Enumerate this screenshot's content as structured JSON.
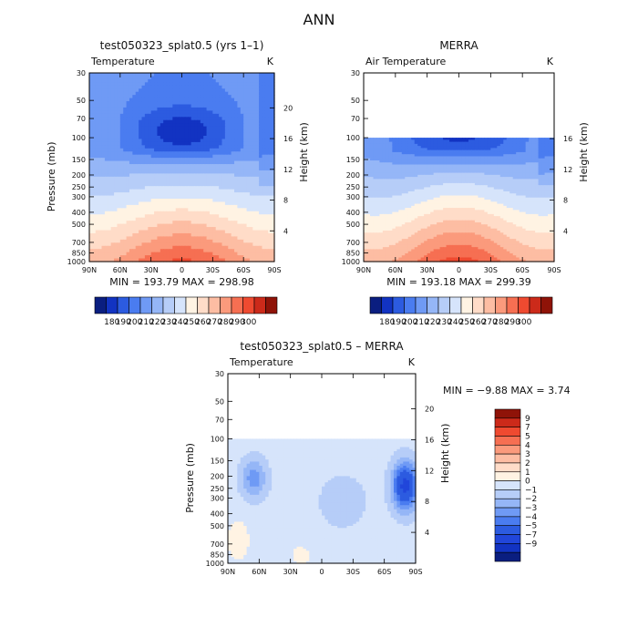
{
  "figure": {
    "title": "ANN"
  },
  "colors": {
    "abs_levels": [
      "#0a1e80",
      "#1233c2",
      "#2c5be0",
      "#4a7cf0",
      "#6f9af5",
      "#95b6f7",
      "#b6cdf8",
      "#d6e4fb",
      "#fff3e3",
      "#ffdcc8",
      "#fdbda3",
      "#fb9a7c",
      "#f66f52",
      "#ef4a30",
      "#cc2a1a",
      "#8f1308"
    ],
    "diff_levels": [
      "#0a1e80",
      "#1233c2",
      "#2146da",
      "#2c5be0",
      "#4a7cf0",
      "#6f9af5",
      "#95b6f7",
      "#b6cdf8",
      "#d6e4fb",
      "#fff3e3",
      "#ffdcc8",
      "#fdbda3",
      "#fb9a7c",
      "#f66f52",
      "#ef4a30",
      "#cc2a1a",
      "#8f1308"
    ]
  },
  "chart_data": [
    {
      "type": "contour",
      "id": "model",
      "title": "test050323_splat0.5 (yrs 1–1)",
      "variable": "Temperature",
      "units": "K",
      "ylabel": "Pressure (mb)",
      "ylabel_right": "Height (km)",
      "xticks": [
        "90N",
        "60N",
        "30N",
        "0",
        "30S",
        "60S",
        "90S"
      ],
      "pressure_levels": [
        "30",
        "50",
        "70",
        "100",
        "150",
        "200",
        "250",
        "300",
        "400",
        "500",
        "700",
        "850",
        "1000"
      ],
      "height_ticks": [
        "20",
        "16",
        "12",
        "8",
        "4"
      ],
      "data_top_mb": 30,
      "stats_text": "MIN = 193.79   MAX = 298.98",
      "min": 193.79,
      "max": 298.98,
      "colorbar_labels": [
        "180",
        "190",
        "200",
        "210",
        "220",
        "230",
        "240",
        "250",
        "260",
        "270",
        "280",
        "290",
        "300"
      ]
    },
    {
      "type": "contour",
      "id": "obs",
      "title": "MERRA",
      "variable": "Air Temperature",
      "units": "K",
      "ylabel": "",
      "ylabel_right": "Height (km)",
      "xticks": [
        "90N",
        "60N",
        "30N",
        "0",
        "30S",
        "60S",
        "90S"
      ],
      "pressure_levels": [
        "30",
        "50",
        "70",
        "100",
        "150",
        "200",
        "250",
        "300",
        "400",
        "500",
        "700",
        "850",
        "1000"
      ],
      "height_ticks": [
        "16",
        "12",
        "8",
        "4"
      ],
      "data_top_mb": 100,
      "stats_text": "MIN = 193.18   MAX = 299.39",
      "min": 193.18,
      "max": 299.39,
      "colorbar_labels": [
        "180",
        "190",
        "200",
        "210",
        "220",
        "230",
        "240",
        "250",
        "260",
        "270",
        "280",
        "290",
        "300"
      ]
    },
    {
      "type": "contour",
      "id": "diff",
      "title": "test050323_splat0.5 – MERRA",
      "variable": "Temperature",
      "units": "K",
      "ylabel": "Pressure (mb)",
      "ylabel_right": "Height (km)",
      "xticks": [
        "90N",
        "60N",
        "30N",
        "0",
        "30S",
        "60S",
        "90S"
      ],
      "pressure_levels": [
        "30",
        "50",
        "70",
        "100",
        "150",
        "200",
        "250",
        "300",
        "400",
        "500",
        "700",
        "850",
        "1000"
      ],
      "height_ticks": [
        "20",
        "16",
        "12",
        "8",
        "4"
      ],
      "data_top_mb": 100,
      "stats_text": "MIN =   −9.88   MAX =    3.74",
      "min": -9.88,
      "max": 3.74,
      "colorbar_labels": [
        "9",
        "7",
        "5",
        "4",
        "3",
        "2",
        "1",
        "0",
        "−1",
        "−2",
        "−3",
        "−4",
        "−5",
        "−7",
        "−9"
      ]
    }
  ]
}
